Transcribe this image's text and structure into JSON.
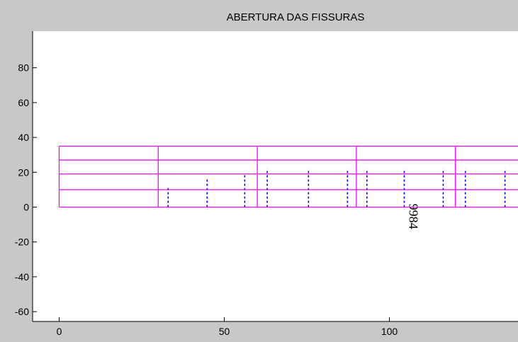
{
  "chart_data": {
    "type": "line",
    "title": "ABERTURA DAS FISSURAS",
    "xlabel": "",
    "ylabel": "",
    "xlim": [
      -8,
      145
    ],
    "ylim": [
      -64,
      100
    ],
    "xticks": [
      0,
      50,
      100
    ],
    "yticks": [
      -60,
      -40,
      -20,
      0,
      20,
      40,
      60,
      80
    ],
    "grid": false,
    "colors": {
      "structure": "#ff00ff",
      "cracks": "#0000ff",
      "axes": "#000000",
      "plot_bg": "#ffffff",
      "figure_bg": "#c8c8c8"
    },
    "structure": {
      "outline": {
        "x": [
          0,
          145
        ],
        "y": [
          0,
          35
        ]
      },
      "horizontal_lines_y": [
        10,
        19,
        27
      ],
      "vertical_dividers_x": [
        30,
        60,
        90,
        120
      ]
    },
    "cracks": [
      {
        "x": 33.0,
        "y_top": 12
      },
      {
        "x": 44.8,
        "y_top": 16
      },
      {
        "x": 56.2,
        "y_top": 19
      },
      {
        "x": 63.0,
        "y_top": 22
      },
      {
        "x": 75.5,
        "y_top": 22
      },
      {
        "x": 87.3,
        "y_top": 22
      },
      {
        "x": 93.2,
        "y_top": 22
      },
      {
        "x": 104.5,
        "y_top": 22
      },
      {
        "x": 116.3,
        "y_top": 22
      },
      {
        "x": 123.0,
        "y_top": 22
      },
      {
        "x": 135.0,
        "y_top": 22
      }
    ],
    "annotations": [
      {
        "text": "9984",
        "x": 106,
        "y": 2,
        "rotation": 90
      }
    ]
  }
}
